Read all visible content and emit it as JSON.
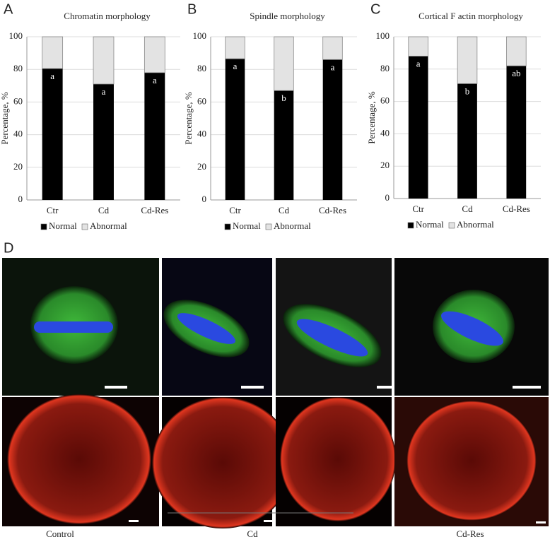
{
  "chart_data": [
    {
      "type": "bar",
      "stacked": true,
      "panel": "A",
      "title": "Chromatin morphology",
      "ylabel": "Percentage, %",
      "categories": [
        "Ctr",
        "Cd",
        "Cd-Res"
      ],
      "series": [
        {
          "name": "Normal",
          "color": "#000000",
          "values": [
            80.5,
            71,
            78
          ]
        },
        {
          "name": "Abnormal",
          "color": "#e3e3e3",
          "values": [
            19.5,
            29,
            22
          ]
        }
      ],
      "bar_labels": [
        "a",
        "a",
        "a"
      ],
      "ylim": [
        0,
        100
      ],
      "yticks": [
        0,
        20,
        40,
        60,
        80,
        100
      ],
      "grid": true
    },
    {
      "type": "bar",
      "stacked": true,
      "panel": "B",
      "title": "Spindle morphology",
      "ylabel": "Percentage, %",
      "categories": [
        "Ctr",
        "Cd",
        "Cd-Res"
      ],
      "series": [
        {
          "name": "Normal",
          "color": "#000000",
          "values": [
            86.5,
            67,
            86
          ]
        },
        {
          "name": "Abnormal",
          "color": "#e3e3e3",
          "values": [
            13.5,
            33,
            14
          ]
        }
      ],
      "bar_labels": [
        "a",
        "b",
        "a"
      ],
      "ylim": [
        0,
        100
      ],
      "yticks": [
        0,
        20,
        40,
        60,
        80,
        100
      ],
      "grid": true
    },
    {
      "type": "bar",
      "stacked": true,
      "panel": "C",
      "title": "Cortical F actin morphology",
      "ylabel": "Percentage, %",
      "categories": [
        "Ctr",
        "Cd",
        "Cd-Res"
      ],
      "series": [
        {
          "name": "Normal",
          "color": "#000000",
          "values": [
            88,
            71,
            82
          ]
        },
        {
          "name": "Abnormal",
          "color": "#e3e3e3",
          "values": [
            12,
            29,
            18
          ]
        }
      ],
      "bar_labels": [
        "a",
        "b",
        "ab"
      ],
      "ylim": [
        0,
        100
      ],
      "yticks": [
        0,
        20,
        40,
        60,
        80,
        100
      ],
      "grid": true
    }
  ],
  "images": {
    "panel": "D",
    "labels": [
      "Control",
      "Cd",
      "Cd-Res"
    ]
  }
}
